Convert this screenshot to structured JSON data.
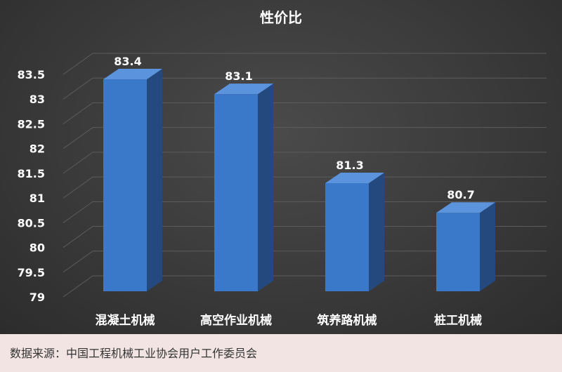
{
  "chart_data": {
    "type": "bar",
    "title": "性价比",
    "categories": [
      "混凝土机械",
      "高空作业机械",
      "筑养路机械",
      "桩工机械"
    ],
    "values": [
      83.4,
      83.1,
      81.3,
      80.7
    ],
    "data_labels": [
      "83.4",
      "83.1",
      "81.3",
      "80.7"
    ],
    "ylim": [
      79,
      83.5
    ],
    "yticks": [
      "79",
      "79.5",
      "80",
      "80.5",
      "81",
      "81.5",
      "82",
      "82.5",
      "83",
      "83.5"
    ],
    "grid": true,
    "three_d": true,
    "bar_color": "#3a78c9",
    "bar_side_color": "#24497e",
    "bar_top_color": "#5b93dc",
    "background_color": "#3a3a3a"
  },
  "footer": {
    "source": "数据来源：中国工程机械工业协会用户工作委员会"
  }
}
